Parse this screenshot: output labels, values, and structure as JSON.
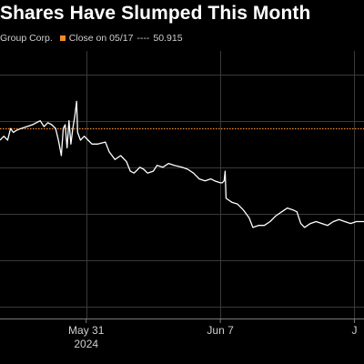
{
  "title": "Shares Have Slumped This Month",
  "legend": {
    "series_label": "Group Corp.",
    "reference_label": "Close on 05/17",
    "reference_dashes": "----",
    "reference_value": "50.915"
  },
  "colors": {
    "background": "#000000",
    "price_line": "#ffffff",
    "reference_line": "#f28c28",
    "gridline": "#3a3a3a"
  },
  "chart_data": {
    "type": "line",
    "title": "Shares Have Slumped This Month",
    "xlabel": "2024",
    "ylabel": "",
    "x_ticks": [
      "May 31",
      "Jun 7",
      "J"
    ],
    "x_tick_days": [
      31,
      38,
      45
    ],
    "x_range_days": [
      26.5,
      45.5
    ],
    "y_range": [
      46.0,
      52.9
    ],
    "grid": true,
    "horizontal_gridlines": [
      46.3,
      47.5,
      48.7,
      49.9,
      51.1,
      52.3
    ],
    "reference_line": {
      "name": "Close on 05/17",
      "value": 50.915
    },
    "series": [
      {
        "name": "Group Corp.",
        "points": [
          [
            26.5,
            50.6
          ],
          [
            26.7,
            50.7
          ],
          [
            26.9,
            50.6
          ],
          [
            27.05,
            50.9
          ],
          [
            27.2,
            50.8
          ],
          [
            27.35,
            50.85
          ],
          [
            27.6,
            50.9
          ],
          [
            27.9,
            50.95
          ],
          [
            28.2,
            51.0
          ],
          [
            28.4,
            51.05
          ],
          [
            28.6,
            51.1
          ],
          [
            28.8,
            50.95
          ],
          [
            29.0,
            51.05
          ],
          [
            29.2,
            51.0
          ],
          [
            29.4,
            50.9
          ],
          [
            29.55,
            50.6
          ],
          [
            29.7,
            50.2
          ],
          [
            29.8,
            50.9
          ],
          [
            29.9,
            51.0
          ],
          [
            30.0,
            50.4
          ],
          [
            30.1,
            51.1
          ],
          [
            30.2,
            50.5
          ],
          [
            30.3,
            50.9
          ],
          [
            30.4,
            51.2
          ],
          [
            30.5,
            51.6
          ],
          [
            30.55,
            50.8
          ],
          [
            30.7,
            50.6
          ],
          [
            30.9,
            50.7
          ],
          [
            31.1,
            50.6
          ],
          [
            31.3,
            50.5
          ],
          [
            31.6,
            50.5
          ],
          [
            32.0,
            50.55
          ],
          [
            32.2,
            50.3
          ],
          [
            32.5,
            50.1
          ],
          [
            32.8,
            50.2
          ],
          [
            33.1,
            50.05
          ],
          [
            33.3,
            49.8
          ],
          [
            33.5,
            49.75
          ],
          [
            33.8,
            49.9
          ],
          [
            34.0,
            49.85
          ],
          [
            34.2,
            49.75
          ],
          [
            34.5,
            49.8
          ],
          [
            34.7,
            49.95
          ],
          [
            35.0,
            49.9
          ],
          [
            35.3,
            50.0
          ],
          [
            35.6,
            49.95
          ],
          [
            36.0,
            49.9
          ],
          [
            36.3,
            49.85
          ],
          [
            36.6,
            49.75
          ],
          [
            36.9,
            49.6
          ],
          [
            37.2,
            49.55
          ],
          [
            37.5,
            49.6
          ],
          [
            37.7,
            49.55
          ],
          [
            38.0,
            49.5
          ],
          [
            38.1,
            49.5
          ],
          [
            38.2,
            49.55
          ],
          [
            38.25,
            49.8
          ],
          [
            38.3,
            49.1
          ],
          [
            38.6,
            49.0
          ],
          [
            38.9,
            48.95
          ],
          [
            39.2,
            48.8
          ],
          [
            39.5,
            48.6
          ],
          [
            39.7,
            48.35
          ],
          [
            40.0,
            48.4
          ],
          [
            40.3,
            48.4
          ],
          [
            40.6,
            48.5
          ],
          [
            40.9,
            48.65
          ],
          [
            41.2,
            48.75
          ],
          [
            41.5,
            48.85
          ],
          [
            41.8,
            48.8
          ],
          [
            42.0,
            48.75
          ],
          [
            42.2,
            48.45
          ],
          [
            42.4,
            48.35
          ],
          [
            42.7,
            48.45
          ],
          [
            43.0,
            48.5
          ],
          [
            43.3,
            48.45
          ],
          [
            43.6,
            48.4
          ],
          [
            43.9,
            48.5
          ],
          [
            44.2,
            48.55
          ],
          [
            44.5,
            48.5
          ],
          [
            44.8,
            48.45
          ],
          [
            45.1,
            48.5
          ],
          [
            45.5,
            48.5
          ]
        ]
      }
    ]
  }
}
